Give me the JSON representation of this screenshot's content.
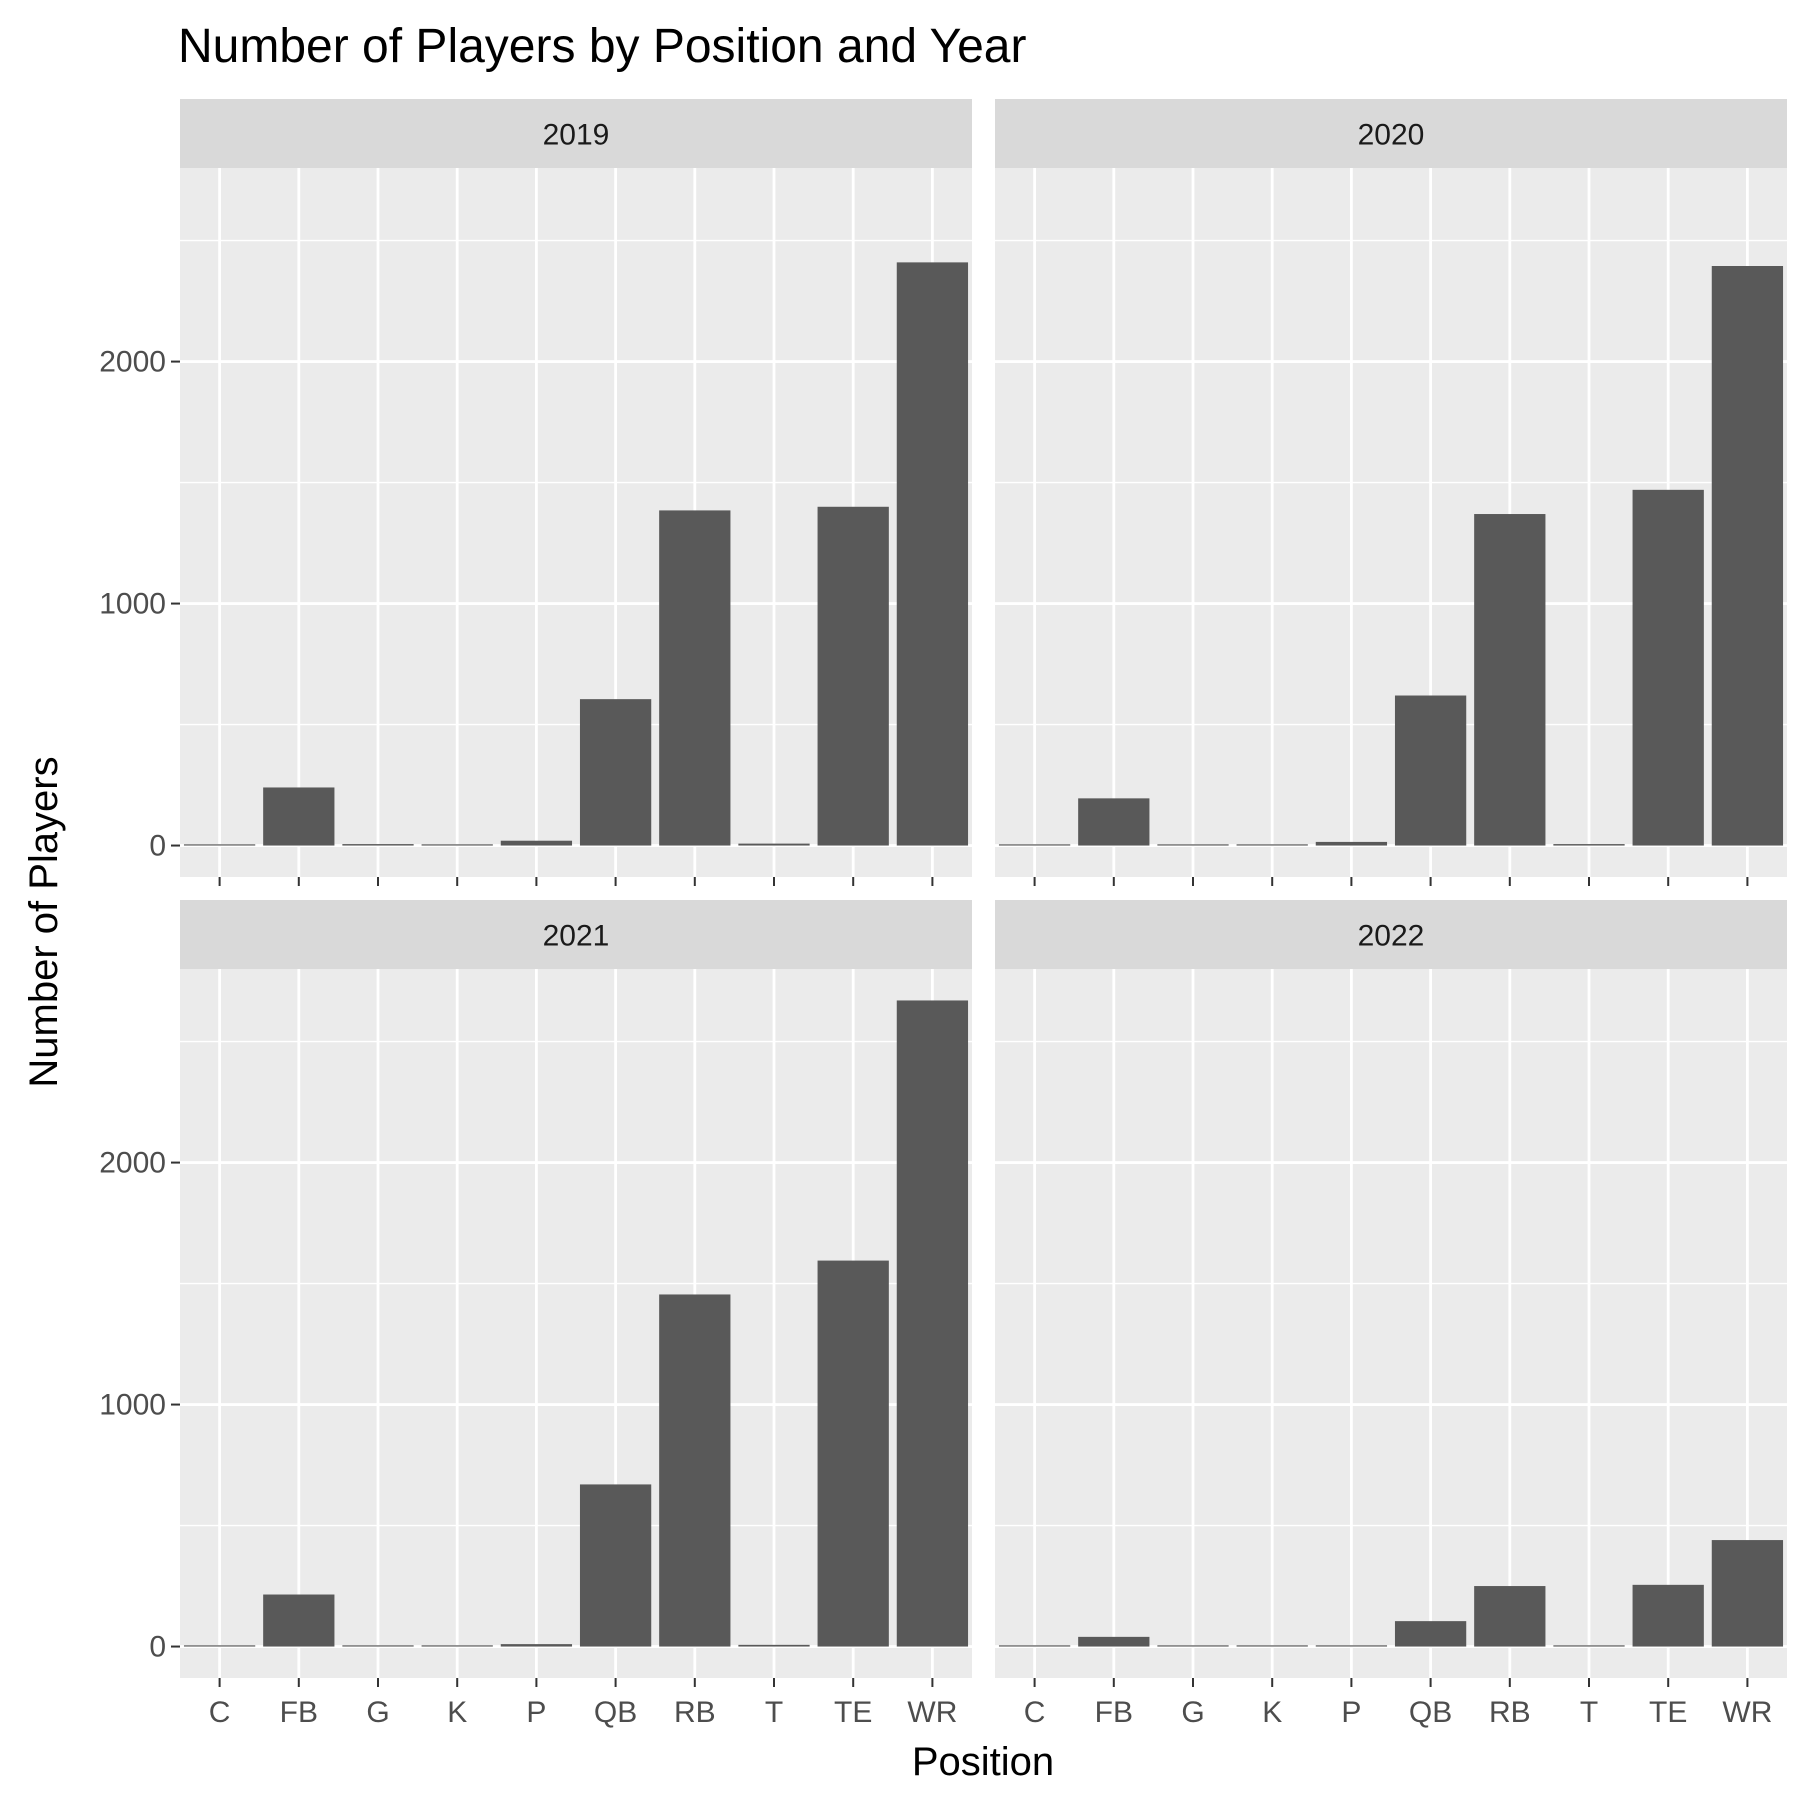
{
  "chart_data": {
    "type": "bar",
    "title": "Number of Players by Position and Year",
    "xlabel": "Position",
    "ylabel": "Number of Players",
    "categories": [
      "C",
      "FB",
      "G",
      "K",
      "P",
      "QB",
      "RB",
      "T",
      "TE",
      "WR"
    ],
    "ylim": [
      -130,
      2800
    ],
    "yticks": [
      0,
      1000,
      2000
    ],
    "grid": true,
    "legend": "none",
    "bar_color": "#595959",
    "panel_background": "#ebebeb",
    "strip_background": "#d9d9d9",
    "grid_color": "#ffffff",
    "facets": [
      {
        "name": "2019",
        "values": [
          2,
          240,
          6,
          5,
          20,
          605,
          1385,
          8,
          1400,
          2410
        ]
      },
      {
        "name": "2020",
        "values": [
          4,
          195,
          1,
          3,
          15,
          620,
          1370,
          6,
          1470,
          2395
        ]
      },
      {
        "name": "2021",
        "values": [
          1,
          215,
          4,
          3,
          10,
          670,
          1455,
          7,
          1595,
          2670
        ]
      },
      {
        "name": "2022",
        "values": [
          2,
          40,
          3,
          0,
          5,
          105,
          250,
          4,
          255,
          440
        ]
      }
    ]
  }
}
